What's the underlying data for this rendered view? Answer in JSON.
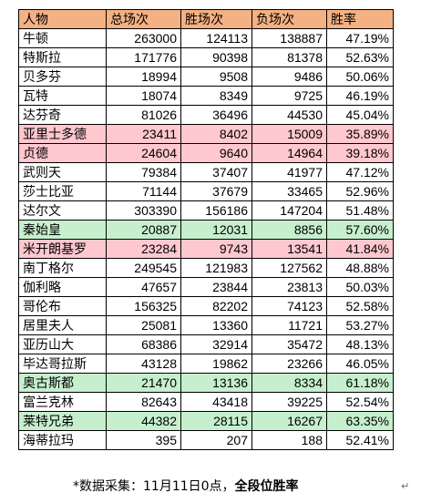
{
  "headers": [
    "人物",
    "总场次",
    "胜场次",
    "负场次",
    "胜率"
  ],
  "rows": [
    {
      "name": "牛顿",
      "total": "263000",
      "wins": "124113",
      "losses": "138887",
      "rate": "47.19%",
      "hl": ""
    },
    {
      "name": "特斯拉",
      "total": "171776",
      "wins": "90398",
      "losses": "81378",
      "rate": "52.63%",
      "hl": ""
    },
    {
      "name": "贝多芬",
      "total": "18994",
      "wins": "9508",
      "losses": "9486",
      "rate": "50.06%",
      "hl": ""
    },
    {
      "name": "瓦特",
      "total": "18074",
      "wins": "8349",
      "losses": "9725",
      "rate": "46.19%",
      "hl": ""
    },
    {
      "name": "达芬奇",
      "total": "81026",
      "wins": "36496",
      "losses": "44530",
      "rate": "45.04%",
      "hl": ""
    },
    {
      "name": "亚里士多德",
      "total": "23411",
      "wins": "8402",
      "losses": "15009",
      "rate": "35.89%",
      "hl": "red"
    },
    {
      "name": "贞德",
      "total": "24604",
      "wins": "9640",
      "losses": "14964",
      "rate": "39.18%",
      "hl": "red"
    },
    {
      "name": "武则天",
      "total": "79384",
      "wins": "37407",
      "losses": "41977",
      "rate": "47.12%",
      "hl": ""
    },
    {
      "name": "莎士比亚",
      "total": "71144",
      "wins": "37679",
      "losses": "33465",
      "rate": "52.96%",
      "hl": ""
    },
    {
      "name": "达尔文",
      "total": "303390",
      "wins": "156186",
      "losses": "147204",
      "rate": "51.48%",
      "hl": ""
    },
    {
      "name": "秦始皇",
      "total": "20887",
      "wins": "12031",
      "losses": "8856",
      "rate": "57.60%",
      "hl": "green"
    },
    {
      "name": "米开朗基罗",
      "total": "23284",
      "wins": "9743",
      "losses": "13541",
      "rate": "41.84%",
      "hl": "red"
    },
    {
      "name": "南丁格尔",
      "total": "249545",
      "wins": "121983",
      "losses": "127562",
      "rate": "48.88%",
      "hl": ""
    },
    {
      "name": "伽利略",
      "total": "47657",
      "wins": "23844",
      "losses": "23813",
      "rate": "50.03%",
      "hl": ""
    },
    {
      "name": "哥伦布",
      "total": "156325",
      "wins": "82202",
      "losses": "74123",
      "rate": "52.58%",
      "hl": ""
    },
    {
      "name": "居里夫人",
      "total": "25081",
      "wins": "13360",
      "losses": "11721",
      "rate": "53.27%",
      "hl": ""
    },
    {
      "name": "亚历山大",
      "total": "68386",
      "wins": "32914",
      "losses": "35472",
      "rate": "48.13%",
      "hl": ""
    },
    {
      "name": "毕达哥拉斯",
      "total": "43128",
      "wins": "19862",
      "losses": "23266",
      "rate": "46.05%",
      "hl": ""
    },
    {
      "name": "奥古斯都",
      "total": "21470",
      "wins": "13136",
      "losses": "8334",
      "rate": "61.18%",
      "hl": "green"
    },
    {
      "name": "富兰克林",
      "total": "82643",
      "wins": "43418",
      "losses": "39225",
      "rate": "52.54%",
      "hl": ""
    },
    {
      "name": "莱特兄弟",
      "total": "44382",
      "wins": "28115",
      "losses": "16267",
      "rate": "63.35%",
      "hl": "green"
    },
    {
      "name": "海蒂拉玛",
      "total": "395",
      "wins": "207",
      "losses": "188",
      "rate": "52.41%",
      "hl": ""
    }
  ],
  "footer": {
    "prefix": "*数据采集：11月11日0点，",
    "bold": "全段位胜率"
  },
  "return_mark": "↵",
  "colors": {
    "header": "#f4b183",
    "red": "#ffc7ce",
    "green": "#c6efce"
  }
}
